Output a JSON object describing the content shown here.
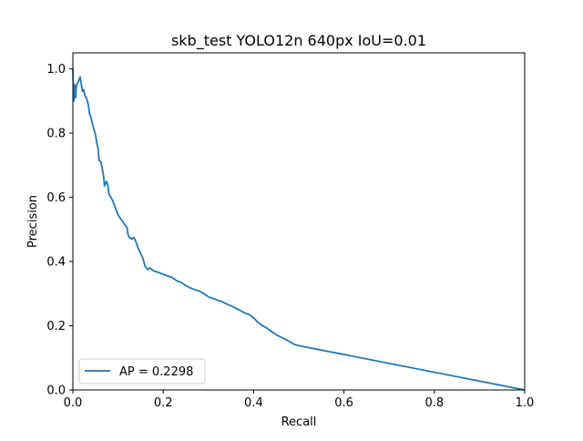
{
  "chart_data": {
    "type": "line",
    "title": "skb_test YOLO12n 640px IoU=0.01",
    "xlabel": "Recall",
    "ylabel": "Precision",
    "xlim": [
      0,
      1
    ],
    "ylim": [
      0,
      1.05
    ],
    "xticks": [
      0.0,
      0.2,
      0.4,
      0.6,
      0.8,
      1.0
    ],
    "xtick_labels": [
      "0.0",
      "0.2",
      "0.4",
      "0.6",
      "0.8",
      "1.0"
    ],
    "yticks": [
      0.0,
      0.2,
      0.4,
      0.6,
      0.8,
      1.0
    ],
    "ytick_labels": [
      "0.0",
      "0.2",
      "0.4",
      "0.6",
      "0.8",
      "1.0"
    ],
    "grid": false,
    "legend_position": "lower-left",
    "series": [
      {
        "name": "AP = 0.2298",
        "color": "#1f77b4",
        "points": [
          [
            0.0,
            1.0
          ],
          [
            0.002,
            0.9
          ],
          [
            0.004,
            0.95
          ],
          [
            0.006,
            0.91
          ],
          [
            0.008,
            0.95
          ],
          [
            0.012,
            0.96
          ],
          [
            0.016,
            0.975
          ],
          [
            0.019,
            0.95
          ],
          [
            0.021,
            0.93
          ],
          [
            0.024,
            0.935
          ],
          [
            0.027,
            0.915
          ],
          [
            0.03,
            0.91
          ],
          [
            0.034,
            0.89
          ],
          [
            0.037,
            0.86
          ],
          [
            0.04,
            0.85
          ],
          [
            0.043,
            0.83
          ],
          [
            0.047,
            0.81
          ],
          [
            0.05,
            0.795
          ],
          [
            0.053,
            0.77
          ],
          [
            0.056,
            0.75
          ],
          [
            0.058,
            0.715
          ],
          [
            0.062,
            0.71
          ],
          [
            0.065,
            0.69
          ],
          [
            0.068,
            0.665
          ],
          [
            0.07,
            0.635
          ],
          [
            0.074,
            0.65
          ],
          [
            0.077,
            0.64
          ],
          [
            0.08,
            0.61
          ],
          [
            0.084,
            0.6
          ],
          [
            0.088,
            0.59
          ],
          [
            0.092,
            0.575
          ],
          [
            0.096,
            0.56
          ],
          [
            0.1,
            0.545
          ],
          [
            0.105,
            0.535
          ],
          [
            0.11,
            0.525
          ],
          [
            0.115,
            0.515
          ],
          [
            0.12,
            0.505
          ],
          [
            0.122,
            0.485
          ],
          [
            0.125,
            0.475
          ],
          [
            0.13,
            0.47
          ],
          [
            0.135,
            0.475
          ],
          [
            0.14,
            0.46
          ],
          [
            0.145,
            0.44
          ],
          [
            0.15,
            0.425
          ],
          [
            0.155,
            0.41
          ],
          [
            0.16,
            0.385
          ],
          [
            0.165,
            0.375
          ],
          [
            0.17,
            0.38
          ],
          [
            0.175,
            0.375
          ],
          [
            0.18,
            0.37
          ],
          [
            0.19,
            0.366
          ],
          [
            0.2,
            0.36
          ],
          [
            0.21,
            0.355
          ],
          [
            0.22,
            0.35
          ],
          [
            0.23,
            0.34
          ],
          [
            0.24,
            0.335
          ],
          [
            0.25,
            0.325
          ],
          [
            0.26,
            0.318
          ],
          [
            0.27,
            0.312
          ],
          [
            0.28,
            0.308
          ],
          [
            0.29,
            0.3
          ],
          [
            0.3,
            0.29
          ],
          [
            0.31,
            0.285
          ],
          [
            0.32,
            0.28
          ],
          [
            0.33,
            0.275
          ],
          [
            0.34,
            0.268
          ],
          [
            0.35,
            0.262
          ],
          [
            0.36,
            0.255
          ],
          [
            0.37,
            0.248
          ],
          [
            0.38,
            0.24
          ],
          [
            0.39,
            0.235
          ],
          [
            0.4,
            0.225
          ],
          [
            0.41,
            0.21
          ],
          [
            0.42,
            0.2
          ],
          [
            0.43,
            0.192
          ],
          [
            0.44,
            0.182
          ],
          [
            0.45,
            0.172
          ],
          [
            0.46,
            0.165
          ],
          [
            0.47,
            0.158
          ],
          [
            0.48,
            0.15
          ],
          [
            0.49,
            0.142
          ],
          [
            0.5,
            0.138
          ],
          [
            1.0,
            0.0
          ]
        ]
      }
    ]
  }
}
